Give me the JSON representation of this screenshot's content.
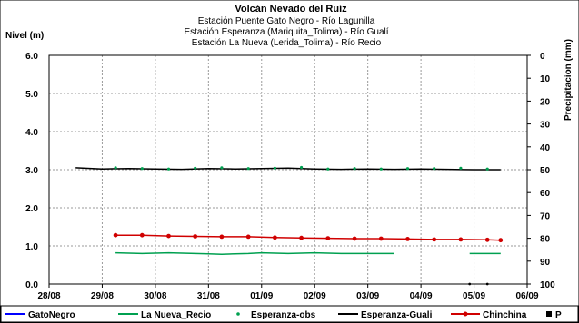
{
  "chart_data": {
    "type": "line",
    "title": "Volcán Nevado del Ruíz",
    "subtitles": [
      "Estación Puente Gato Negro - Río Lagunilla",
      "Estación Esperanza (Mariquita_Tolima) - Río Gualí",
      "Estación La Nueva (Lerida_Tolima) - Río Recio"
    ],
    "ylabel_left": "Nivel (m)",
    "ylabel_right": "Precipitacion (mm)",
    "x_ticks": [
      "28/08",
      "29/08",
      "30/08",
      "31/08",
      "01/09",
      "02/09",
      "03/09",
      "04/09",
      "05/09",
      "06/09"
    ],
    "y_left_ticks": [
      "0.0",
      "1.0",
      "2.0",
      "3.0",
      "4.0",
      "5.0",
      "6.0"
    ],
    "y_right_ticks": [
      "0",
      "10",
      "20",
      "30",
      "40",
      "50",
      "60",
      "70",
      "80",
      "90",
      "100"
    ],
    "ylim_left": [
      0,
      6
    ],
    "ylim_right_inverted": [
      0,
      100
    ],
    "grid": true,
    "legend_position": "bottom",
    "colors": {
      "gatonegro": "#0000ff",
      "la_nueva": "#00a050",
      "esperanza_obs": "#00a050",
      "esperanza_guali": "#000000",
      "chinchina": "#d00000",
      "p": "#000000"
    },
    "series": [
      {
        "name": "GatoNegro",
        "x": [],
        "y": []
      },
      {
        "name": "La Nueva_Recio",
        "segments": [
          {
            "x": [
              "29/08 06:00",
              "29/08 12:00",
              "29/08 18:00",
              "30/08 00:00",
              "30/08 06:00",
              "30/08 12:00",
              "30/08 18:00",
              "31/08 00:00",
              "31/08 06:00",
              "31/08 12:00",
              "31/08 18:00",
              "01/09 00:00",
              "01/09 06:00",
              "01/09 12:00",
              "01/09 18:00",
              "02/09 00:00",
              "02/09 06:00",
              "02/09 12:00",
              "02/09 18:00",
              "03/09 00:00",
              "03/09 06:00",
              "03/09 12:00"
            ],
            "y": [
              0.82,
              0.81,
              0.8,
              0.81,
              0.82,
              0.81,
              0.8,
              0.79,
              0.78,
              0.79,
              0.8,
              0.82,
              0.81,
              0.8,
              0.81,
              0.82,
              0.81,
              0.8,
              0.8,
              0.8,
              0.8,
              0.8
            ]
          },
          {
            "x": [
              "04/09 22:00",
              "05/09 06:00",
              "05/09 12:00"
            ],
            "y": [
              0.8,
              0.8,
              0.8
            ]
          }
        ]
      },
      {
        "name": "Esperanza-obs",
        "x": [
          "29/08 06:00",
          "29/08 18:00",
          "30/08 06:00",
          "30/08 18:00",
          "31/08 06:00",
          "31/08 18:00",
          "01/09 06:00",
          "01/09 18:00",
          "02/09 06:00",
          "02/09 18:00",
          "03/09 06:00",
          "03/09 18:00",
          "04/09 06:00",
          "04/09 18:00",
          "05/09 06:00"
        ],
        "y": [
          3.05,
          3.03,
          3.02,
          3.04,
          3.05,
          3.03,
          3.04,
          3.06,
          3.02,
          3.03,
          3.02,
          3.03,
          3.03,
          3.04,
          3.02
        ]
      },
      {
        "name": "Esperanza-Guali",
        "x": [
          "28/08 12:00",
          "29/08 00:00",
          "29/08 12:00",
          "30/08 00:00",
          "30/08 12:00",
          "31/08 00:00",
          "31/08 12:00",
          "01/09 00:00",
          "01/09 12:00",
          "02/09 00:00",
          "02/09 12:00",
          "03/09 00:00",
          "03/09 12:00",
          "04/09 00:00",
          "04/09 12:00",
          "05/09 00:00",
          "05/09 12:00"
        ],
        "y": [
          3.05,
          3.02,
          3.03,
          3.02,
          3.01,
          3.03,
          3.02,
          3.03,
          3.04,
          3.02,
          3.01,
          3.02,
          3.01,
          3.02,
          3.01,
          3.0,
          3.0
        ]
      },
      {
        "name": "Chinchina",
        "x": [
          "29/08 06:00",
          "29/08 18:00",
          "30/08 06:00",
          "30/08 18:00",
          "31/08 06:00",
          "31/08 18:00",
          "01/09 06:00",
          "01/09 18:00",
          "02/09 06:00",
          "02/09 18:00",
          "03/09 06:00",
          "03/09 18:00",
          "04/09 06:00",
          "04/09 18:00",
          "05/09 06:00",
          "05/09 12:00"
        ],
        "y": [
          1.28,
          1.28,
          1.26,
          1.25,
          1.24,
          1.24,
          1.22,
          1.21,
          1.2,
          1.19,
          1.19,
          1.18,
          1.17,
          1.17,
          1.16,
          1.15
        ]
      },
      {
        "name": "P",
        "x": [
          "04/09 22:00",
          "05/09 06:00"
        ],
        "precip_mm": [
          100,
          100
        ]
      }
    ]
  }
}
